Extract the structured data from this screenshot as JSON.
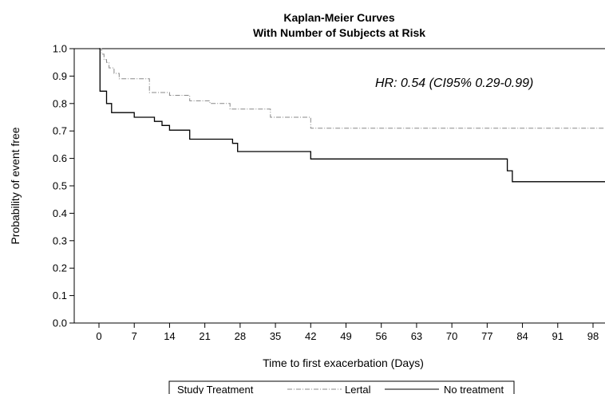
{
  "chart_data": {
    "type": "line",
    "step": true,
    "title": "Kaplan-Meier Curves",
    "subtitle": "With Number of Subjects at Risk",
    "xlabel": "Time to first exacerbation (Days)",
    "ylabel": "Probability of event free",
    "xlim": [
      -5,
      101
    ],
    "ylim": [
      0,
      1
    ],
    "x_ticks": [
      0,
      7,
      14,
      21,
      28,
      35,
      42,
      49,
      56,
      63,
      70,
      77,
      84,
      91,
      98
    ],
    "y_ticks": [
      0.0,
      0.1,
      0.2,
      0.3,
      0.4,
      0.5,
      0.6,
      0.7,
      0.8,
      0.9,
      1.0
    ],
    "y_tick_labels": [
      "0.0",
      "0.1",
      "0.2",
      "0.3",
      "0.4",
      "0.5",
      "0.6",
      "0.7",
      "0.8",
      "0.9",
      "1.0"
    ],
    "grid": false,
    "annotation": "HR: 0.54 (CI95% 0.29-0.99)",
    "legend": {
      "title": "Study Treatment",
      "position": "bottom"
    },
    "series": [
      {
        "name": "Lertal",
        "color": "#888888",
        "style": "dash-dot",
        "x": [
          0,
          0.5,
          1,
          1.5,
          2,
          3,
          4,
          10,
          14,
          18,
          22,
          26,
          34,
          42,
          101
        ],
        "y": [
          1.0,
          0.98,
          0.96,
          0.95,
          0.93,
          0.91,
          0.89,
          0.84,
          0.83,
          0.81,
          0.8,
          0.78,
          0.75,
          0.71,
          0.71
        ]
      },
      {
        "name": "No treatment",
        "color": "#000000",
        "style": "solid",
        "x": [
          0,
          0.2,
          1.5,
          2.5,
          7,
          11,
          12.5,
          14,
          18,
          26.5,
          27.5,
          42,
          81,
          82,
          101
        ],
        "y": [
          1.0,
          0.845,
          0.8,
          0.767,
          0.75,
          0.735,
          0.72,
          0.703,
          0.67,
          0.655,
          0.625,
          0.598,
          0.555,
          0.515,
          0.515
        ]
      }
    ]
  }
}
